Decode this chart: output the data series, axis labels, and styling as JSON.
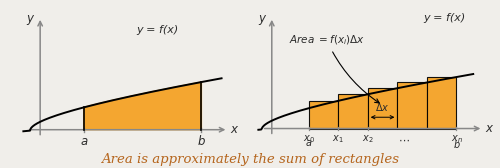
{
  "bg_color": "#f0eeea",
  "orange_fill": "#F5A020",
  "axis_color": "#888888",
  "text_color": "#2c2c2c",
  "curve_color": "#1a1a1a",
  "caption": "Area is approximately the sum of rectangles",
  "caption_color": "#b5651d",
  "caption_fontsize": 9.5,
  "left_func_label": "y = f(x)",
  "left_a_label": "a",
  "left_b_label": "b",
  "left_y_label": "y",
  "left_x_label": "x",
  "right_func_label": "y = f(x)",
  "right_area_label": "Area $= f(x_i)\\Delta x$",
  "right_y_label": "y",
  "right_x_label": "x"
}
